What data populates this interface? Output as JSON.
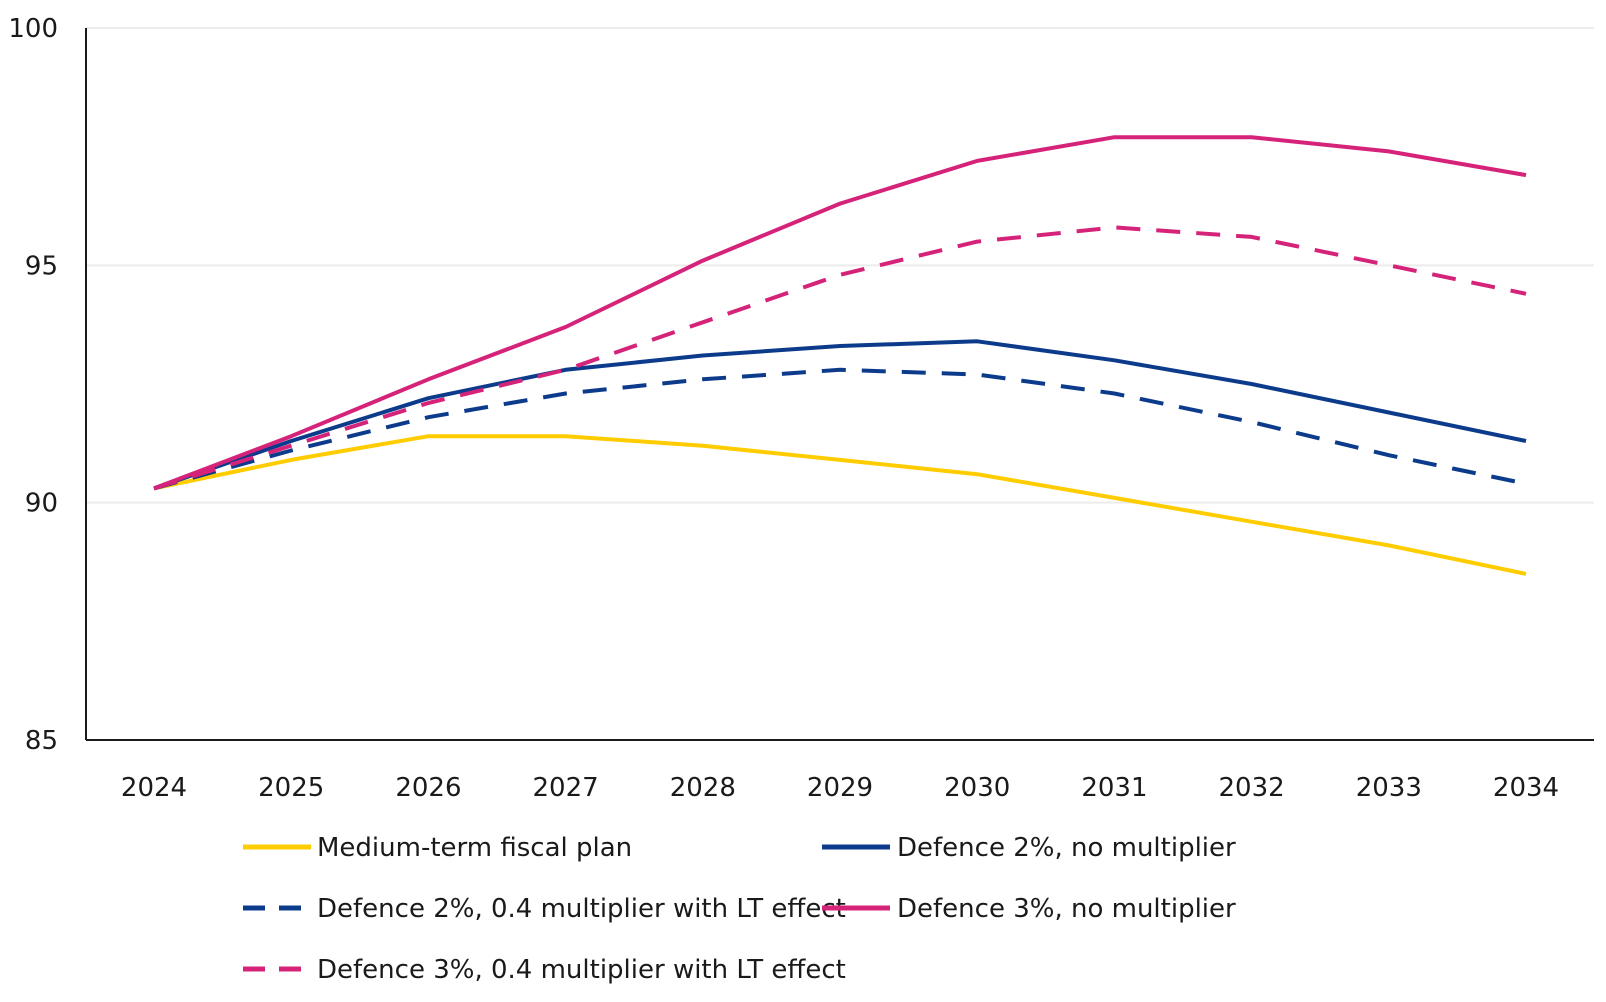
{
  "chart_data": {
    "type": "line",
    "title": "",
    "xlabel": "",
    "ylabel": "",
    "x": [
      "2024",
      "2025",
      "2026",
      "2027",
      "2028",
      "2029",
      "2030",
      "2031",
      "2032",
      "2033",
      "2034"
    ],
    "ylim": [
      85,
      100
    ],
    "yticks": [
      "85",
      "90",
      "95",
      "100"
    ],
    "grid": "horizontal",
    "legend_position": "bottom",
    "series": [
      {
        "name": "Medium-term fiscal plan",
        "color": "#ffcc00",
        "dash": "solid",
        "values": [
          90.3,
          90.9,
          91.4,
          91.4,
          91.2,
          90.9,
          90.6,
          90.1,
          89.6,
          89.1,
          88.5
        ]
      },
      {
        "name": "Defence 2%, no multiplier",
        "color": "#0d3b8c",
        "dash": "solid",
        "values": [
          90.3,
          91.3,
          92.2,
          92.8,
          93.1,
          93.3,
          93.4,
          93.0,
          92.5,
          91.9,
          91.3
        ]
      },
      {
        "name": "Defence 2%, 0.4 multiplier with LT effect",
        "color": "#0d3b8c",
        "dash": "dashed",
        "values": [
          90.3,
          91.1,
          91.8,
          92.3,
          92.6,
          92.8,
          92.7,
          92.3,
          91.7,
          91.0,
          90.4
        ]
      },
      {
        "name": "Defence 3%, no multiplier",
        "color": "#d6237a",
        "dash": "solid",
        "values": [
          90.3,
          91.4,
          92.6,
          93.7,
          95.1,
          96.3,
          97.2,
          97.7,
          97.7,
          97.4,
          96.9
        ]
      },
      {
        "name": "Defence 3%, 0.4 multiplier with LT effect",
        "color": "#d6237a",
        "dash": "dashed",
        "values": [
          90.3,
          91.2,
          92.1,
          92.8,
          93.8,
          94.8,
          95.5,
          95.8,
          95.6,
          95.0,
          94.4
        ]
      }
    ]
  }
}
